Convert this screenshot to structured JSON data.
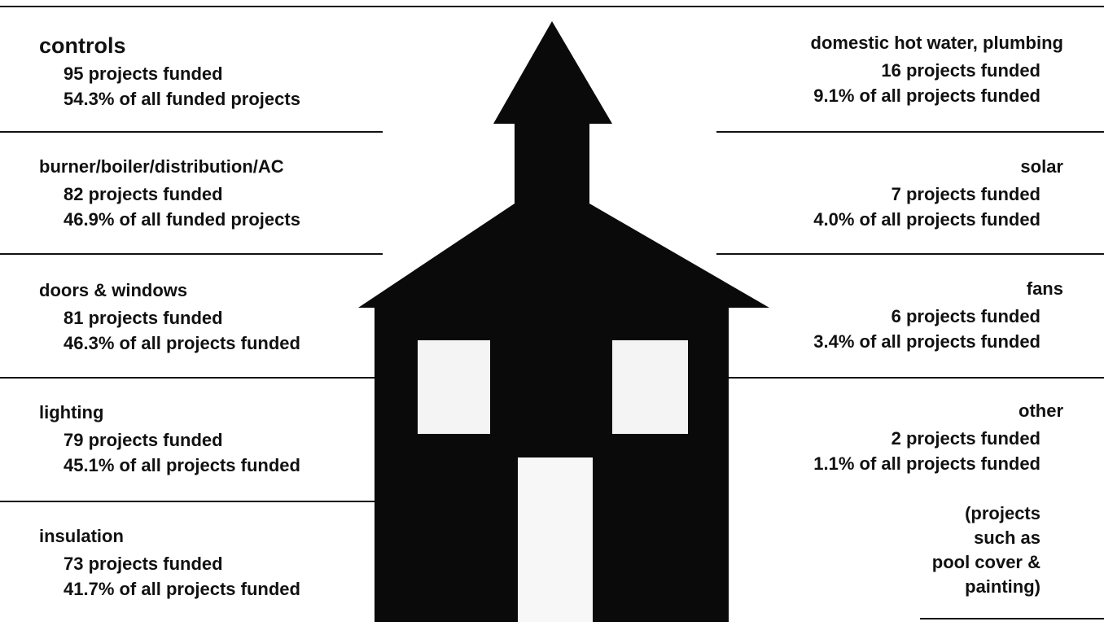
{
  "left": [
    {
      "name": "controls",
      "count": "95 projects funded",
      "share": "54.3% of all funded projects"
    },
    {
      "name": "burner/boiler/distribution/AC",
      "count": "82 projects funded",
      "share": "46.9% of all funded projects"
    },
    {
      "name": "doors & windows",
      "count": "81 projects funded",
      "share": "46.3% of all projects funded"
    },
    {
      "name": "lighting",
      "count": "79 projects funded",
      "share": "45.1% of all projects funded"
    },
    {
      "name": "insulation",
      "count": "73 projects funded",
      "share": "41.7% of all projects funded"
    }
  ],
  "right": [
    {
      "name": "domestic hot water, plumbing",
      "count": "16 projects funded",
      "share": "9.1% of all projects funded"
    },
    {
      "name": "solar",
      "count": "7 projects funded",
      "share": "4.0% of all projects funded"
    },
    {
      "name": "fans",
      "count": "6 projects funded",
      "share": "3.4% of all projects funded"
    },
    {
      "name": "other",
      "count": "2 projects funded",
      "share": "1.1% of all projects funded"
    }
  ],
  "note": [
    "(projects",
    "such as",
    "pool cover &",
    "painting)"
  ]
}
